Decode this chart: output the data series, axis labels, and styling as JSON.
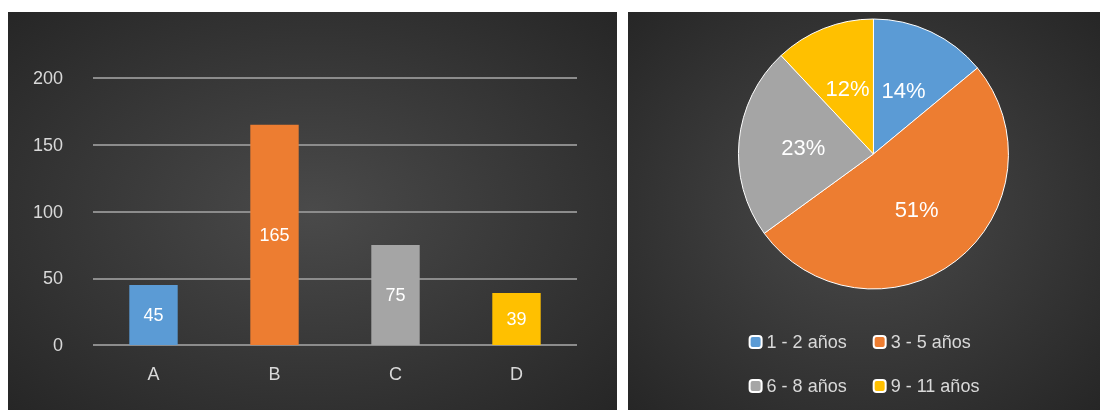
{
  "chart_data": [
    {
      "type": "bar",
      "categories": [
        "A",
        "B",
        "C",
        "D"
      ],
      "values": [
        45,
        165,
        75,
        39
      ],
      "colors": [
        "#5b9bd5",
        "#ed7d31",
        "#a5a5a5",
        "#ffc000"
      ],
      "ylim": [
        0,
        200
      ],
      "yticks": [
        0,
        50,
        100,
        150,
        200
      ],
      "grid": "y",
      "data_labels": true,
      "legend": false
    },
    {
      "type": "pie",
      "categories": [
        "1 - 2 años",
        "3 - 5 años",
        "6 - 8 años",
        "9 - 11 años"
      ],
      "values": [
        14,
        51,
        23,
        12
      ],
      "colors": [
        "#5b9bd5",
        "#ed7d31",
        "#a5a5a5",
        "#ffc000"
      ],
      "value_labels": [
        "14%",
        "51%",
        "23%",
        "12%"
      ],
      "legend": "bottom"
    }
  ]
}
